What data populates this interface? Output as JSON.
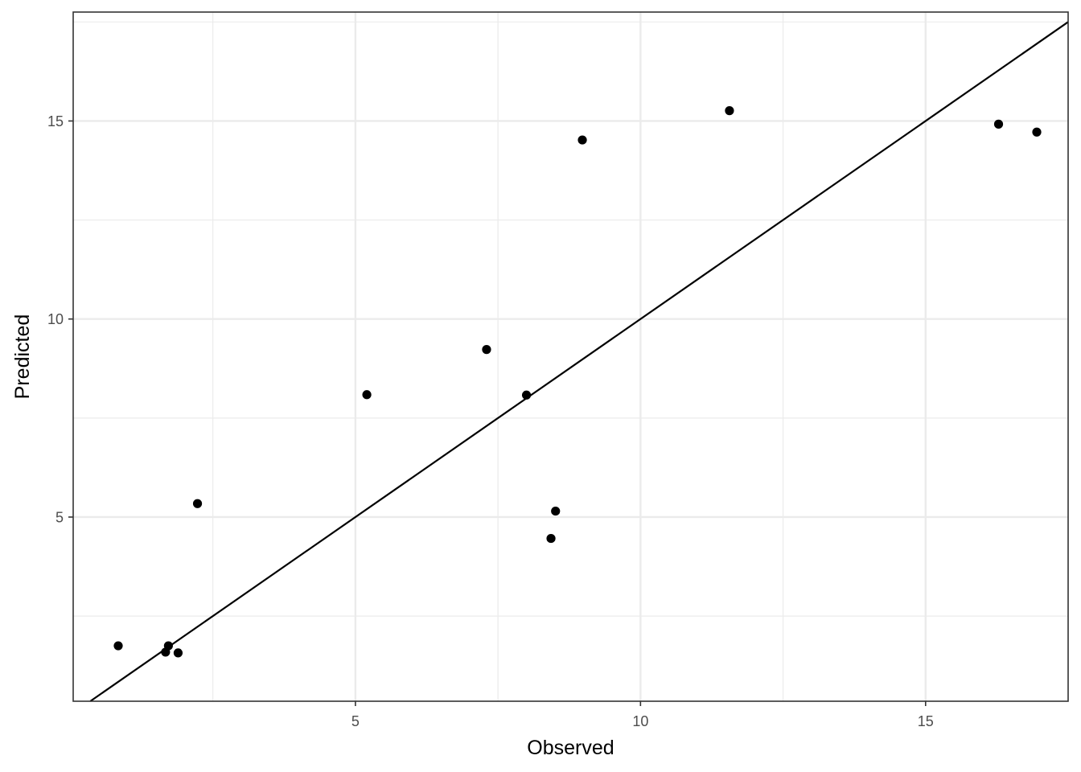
{
  "chart_data": {
    "type": "scatter",
    "xlabel": "Observed",
    "ylabel": "Predicted",
    "xlim": [
      0.05,
      17.5
    ],
    "ylim": [
      0.35,
      17.75
    ],
    "x_ticks": [
      5,
      10,
      15
    ],
    "y_ticks": [
      5,
      10,
      15
    ],
    "x_tick_labels": [
      "5",
      "10",
      "15"
    ],
    "y_tick_labels": [
      "5",
      "10",
      "15"
    ],
    "grid": true,
    "reference_line": {
      "type": "identity",
      "slope": 1,
      "intercept": 0
    },
    "points": [
      {
        "x": 0.84,
        "y": 1.75
      },
      {
        "x": 1.67,
        "y": 1.59
      },
      {
        "x": 1.72,
        "y": 1.75
      },
      {
        "x": 1.89,
        "y": 1.57
      },
      {
        "x": 2.23,
        "y": 5.34
      },
      {
        "x": 5.2,
        "y": 8.09
      },
      {
        "x": 7.3,
        "y": 9.23
      },
      {
        "x": 8.0,
        "y": 8.08
      },
      {
        "x": 8.43,
        "y": 4.46
      },
      {
        "x": 8.51,
        "y": 5.15
      },
      {
        "x": 8.98,
        "y": 14.52
      },
      {
        "x": 11.56,
        "y": 15.26
      },
      {
        "x": 16.28,
        "y": 14.92
      },
      {
        "x": 16.95,
        "y": 14.72
      }
    ],
    "colors": {
      "points": "#000000",
      "line": "#000000",
      "grid": "#ebebeb",
      "panel_border": "#333333"
    }
  }
}
